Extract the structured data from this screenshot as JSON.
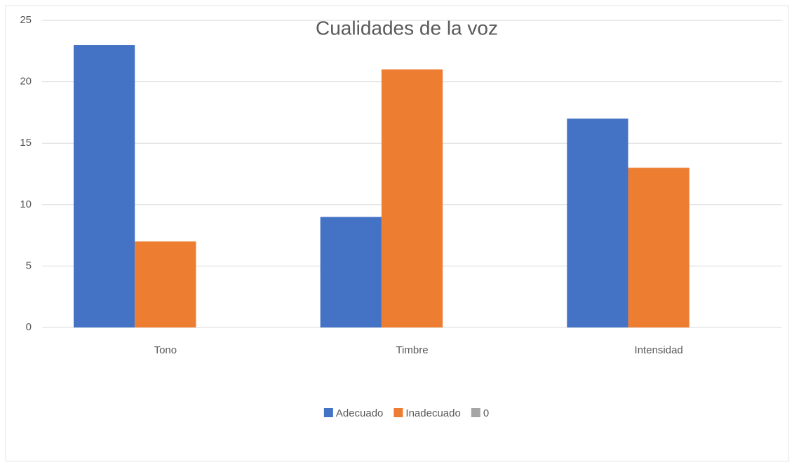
{
  "chart_data": {
    "type": "bar",
    "title": "Cualidades de la voz",
    "categories": [
      "Tono",
      "Timbre",
      "Intensidad"
    ],
    "series": [
      {
        "name": "Adecuado",
        "color": "#4472c4",
        "values": [
          23,
          9,
          17
        ]
      },
      {
        "name": "Inadecuado",
        "color": "#ed7d31",
        "values": [
          7,
          21,
          13
        ]
      },
      {
        "name": "0",
        "color": "#a5a5a5",
        "values": [
          0,
          0,
          0
        ]
      }
    ],
    "ylim": [
      0,
      25
    ],
    "yticks": [
      0,
      5,
      10,
      15,
      20,
      25
    ],
    "grid": true,
    "legend": "bottom"
  }
}
